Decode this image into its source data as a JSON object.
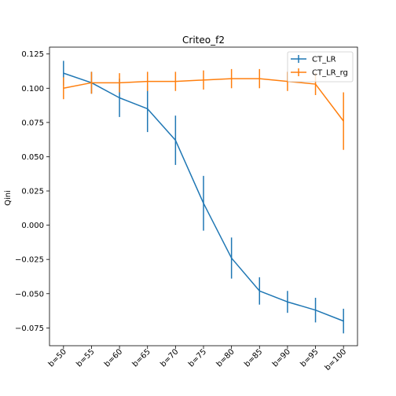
{
  "chart_data": {
    "type": "line",
    "title": "Criteo_f2",
    "xlabel": "",
    "ylabel": "Qini",
    "categories": [
      "b=50",
      "b=55",
      "b=60",
      "b=65",
      "b=70",
      "b=75",
      "b=80",
      "b=85",
      "b=90",
      "b=95",
      "b=100"
    ],
    "yticks": [
      "0.125",
      "0.100",
      "0.075",
      "0.050",
      "0.025",
      "0.000",
      "−0.025",
      "−0.050",
      "−0.075"
    ],
    "ytick_values": [
      0.125,
      0.1,
      0.075,
      0.05,
      0.025,
      0.0,
      -0.025,
      -0.05,
      -0.075
    ],
    "ylim": [
      -0.088,
      0.13
    ],
    "grid": false,
    "legend_position": "top-right",
    "series": [
      {
        "name": "CT_LR",
        "color": "#1f77b4",
        "values": [
          0.111,
          0.104,
          0.093,
          0.085,
          0.062,
          0.016,
          -0.024,
          -0.048,
          -0.056,
          -0.062,
          -0.07
        ],
        "errors": [
          0.009,
          0.008,
          0.014,
          0.017,
          0.018,
          0.02,
          0.015,
          0.01,
          0.008,
          0.009,
          0.009
        ]
      },
      {
        "name": "CT_LR_rg",
        "color": "#ff7f0e",
        "values": [
          0.1,
          0.104,
          0.104,
          0.105,
          0.105,
          0.106,
          0.107,
          0.107,
          0.105,
          0.103,
          0.076
        ],
        "errors": [
          0.008,
          0.008,
          0.007,
          0.007,
          0.007,
          0.007,
          0.007,
          0.007,
          0.007,
          0.008,
          0.021
        ]
      }
    ]
  }
}
